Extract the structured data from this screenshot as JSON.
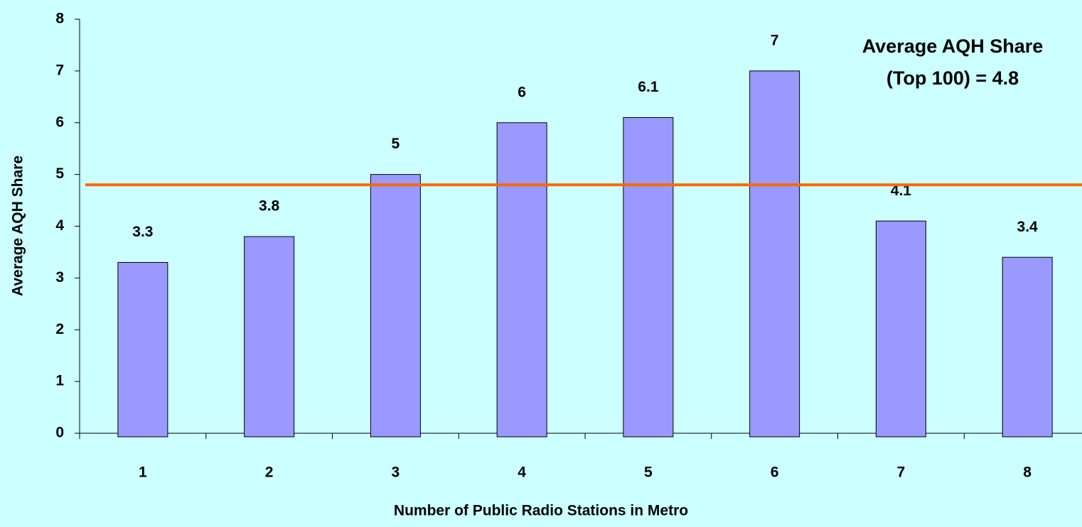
{
  "chart_data": {
    "type": "bar",
    "x_label": "Number of Public Radio Stations in Metro",
    "y_label": "Average AQH Share",
    "categories": [
      "1",
      "2",
      "3",
      "4",
      "5",
      "6",
      "7",
      "8"
    ],
    "values": [
      3.3,
      3.8,
      5,
      6,
      6.1,
      7,
      4.1,
      3.4
    ],
    "color": "#9999ff",
    "ylim": [
      0,
      8
    ],
    "yticks": [
      0,
      1,
      2,
      3,
      4,
      5,
      6,
      7,
      8
    ],
    "reference_line": {
      "value": 4.8,
      "color": "#ff6600"
    },
    "annotation": [
      "Average AQH Share",
      "(Top 100) = 4.8"
    ]
  }
}
